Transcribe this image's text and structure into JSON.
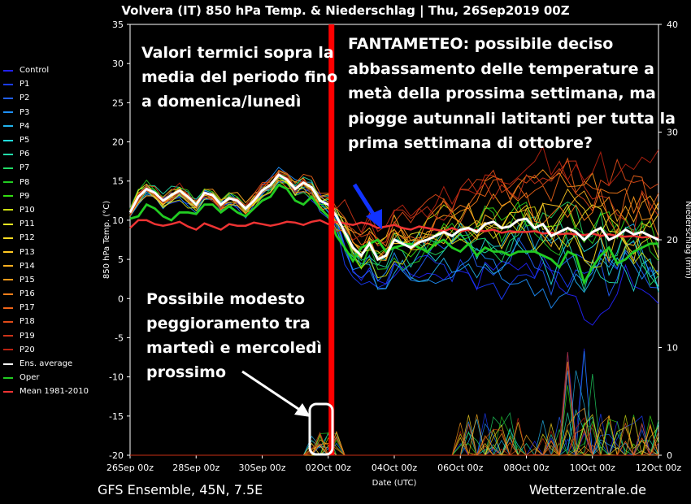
{
  "title": "Volvera  (IT)  850 hPa Temp. & Niederschlag | Thu, 26Sep2019 00Z",
  "footer_left": "GFS Ensemble, 45N, 7.5E",
  "footer_right": "Wetterzentrale.de",
  "annotations": {
    "a1": [
      "Valori termici sopra la",
      "media del periodo fino",
      "a domenica/lunedì"
    ],
    "a2": [
      "FANTAMETEO: possibile deciso",
      "abbassamento delle temperature a",
      "metà della prossima settimana, ma",
      "piogge autunnali latitanti per tutta la",
      "prima settimana di ottobre?"
    ],
    "a3": [
      "Possibile modesto",
      "peggioramento tra",
      "martedì e mercoledì",
      "prossimo"
    ]
  },
  "legend": [
    {
      "label": "Control",
      "color": "#2222ff"
    },
    {
      "label": "P1",
      "color": "#1a3cff"
    },
    {
      "label": "P2",
      "color": "#2260ff"
    },
    {
      "label": "P3",
      "color": "#1e90ff"
    },
    {
      "label": "P4",
      "color": "#22b4ee"
    },
    {
      "label": "P5",
      "color": "#22dddd"
    },
    {
      "label": "P6",
      "color": "#22ddaa"
    },
    {
      "label": "P7",
      "color": "#22dd66"
    },
    {
      "label": "P8",
      "color": "#22cc22"
    },
    {
      "label": "P9",
      "color": "#33dd11"
    },
    {
      "label": "P10",
      "color": "#ccdd11"
    },
    {
      "label": "P11",
      "color": "#eeee22"
    },
    {
      "label": "P12",
      "color": "#ffdd22"
    },
    {
      "label": "P13",
      "color": "#ffc822"
    },
    {
      "label": "P14",
      "color": "#ffb020"
    },
    {
      "label": "P15",
      "color": "#ff9a1a"
    },
    {
      "label": "P16",
      "color": "#ff7f1a"
    },
    {
      "label": "P17",
      "color": "#f06418"
    },
    {
      "label": "P18",
      "color": "#e04a18"
    },
    {
      "label": "P19",
      "color": "#cc3318"
    },
    {
      "label": "P20",
      "color": "#bb2211"
    },
    {
      "label": "Ens. average",
      "color": "#ffffff"
    },
    {
      "label": "Oper",
      "color": "#22cc22"
    },
    {
      "label": "Mean 1981-2010",
      "color": "#ee3333"
    }
  ],
  "chart_data": {
    "type": "line",
    "xlabel": "Date (UTC)",
    "ylabel": "850 hPa Temp. (°C)",
    "y2label": "Niederschlag (mm)",
    "ylim": [
      -20,
      35
    ],
    "y2lim": [
      0,
      40
    ],
    "yticks": [
      -20,
      -15,
      -10,
      -5,
      0,
      5,
      10,
      15,
      20,
      25,
      30,
      35
    ],
    "y2ticks": [
      0,
      10,
      20,
      30,
      40
    ],
    "x_tick_labels": [
      "26Sep 00z",
      "28Sep 00z",
      "30Sep 00z",
      "02Oct 00z",
      "04Oct 00z",
      "06Oct 00z",
      "08Oct 00z",
      "10Oct 00z",
      "12Oct 00z"
    ],
    "x_hours_range": [
      0,
      384
    ],
    "series": [
      {
        "name": "Ens. average",
        "hours_start": 0,
        "step": 6,
        "values": [
          11.0,
          13.0,
          14.0,
          13.5,
          12.5,
          13.2,
          13.8,
          13.0,
          12.0,
          13.5,
          13.2,
          12.0,
          12.8,
          12.5,
          11.5,
          12.5,
          13.8,
          14.5,
          15.8,
          15.2,
          14.0,
          14.8,
          14.2,
          12.5,
          12.0,
          10.5,
          8.5,
          6.5,
          5.5,
          7.0,
          5.0,
          5.5,
          7.5,
          7.0,
          6.5,
          7.2,
          7.5,
          8.0,
          8.5,
          8.0,
          8.8,
          9.0,
          8.5,
          9.5,
          9.8,
          9.0,
          9.2,
          10.0,
          10.2,
          9.0,
          9.5,
          8.0,
          8.5,
          9.0,
          8.5,
          7.5,
          8.5,
          9.0,
          7.5,
          8.0,
          8.8,
          8.2,
          8.5,
          8.0,
          7.5
        ]
      },
      {
        "name": "Oper",
        "hours_start": 0,
        "step": 6,
        "values": [
          10.2,
          10.5,
          12.0,
          11.5,
          10.5,
          10.0,
          11.0,
          11.0,
          10.8,
          12.0,
          12.0,
          11.0,
          11.8,
          11.0,
          10.5,
          11.5,
          12.5,
          13.0,
          14.5,
          14.0,
          12.5,
          12.0,
          13.0,
          11.5,
          10.5,
          8.0,
          6.5,
          4.8,
          6.5,
          7.0,
          7.5,
          6.0,
          6.5,
          6.8,
          7.0,
          6.5,
          6.0,
          7.0,
          7.5,
          6.5,
          6.0,
          7.0,
          5.5,
          6.5,
          6.0,
          6.0,
          5.5,
          6.0,
          6.0,
          6.0,
          5.5,
          5.0,
          4.0,
          6.0,
          5.5,
          2.0,
          4.0,
          5.5,
          6.5,
          4.5,
          5.0,
          6.0,
          6.5,
          7.0,
          7.0
        ]
      },
      {
        "name": "Mean 1981-2010",
        "hours_start": 0,
        "step": 6,
        "values": [
          9.0,
          10.0,
          10.0,
          9.5,
          9.3,
          9.5,
          9.8,
          9.2,
          8.8,
          9.6,
          9.2,
          8.8,
          9.5,
          9.3,
          9.3,
          9.7,
          9.5,
          9.3,
          9.5,
          9.8,
          9.7,
          9.4,
          9.8,
          10.0,
          9.5,
          9.8,
          9.6,
          9.4,
          9.7,
          9.5,
          9.0,
          9.2,
          9.4,
          9.0,
          8.8,
          9.2,
          9.0,
          8.8,
          8.6,
          9.0,
          8.6,
          8.8,
          8.7,
          8.6,
          8.8,
          8.4,
          8.6,
          8.5,
          8.5,
          8.6,
          8.3,
          8.4,
          8.2,
          8.3,
          8.2,
          8.1,
          8.3,
          8.0,
          8.2,
          8.0,
          7.9,
          8.0,
          7.8,
          7.9,
          7.7
        ]
      }
    ]
  }
}
